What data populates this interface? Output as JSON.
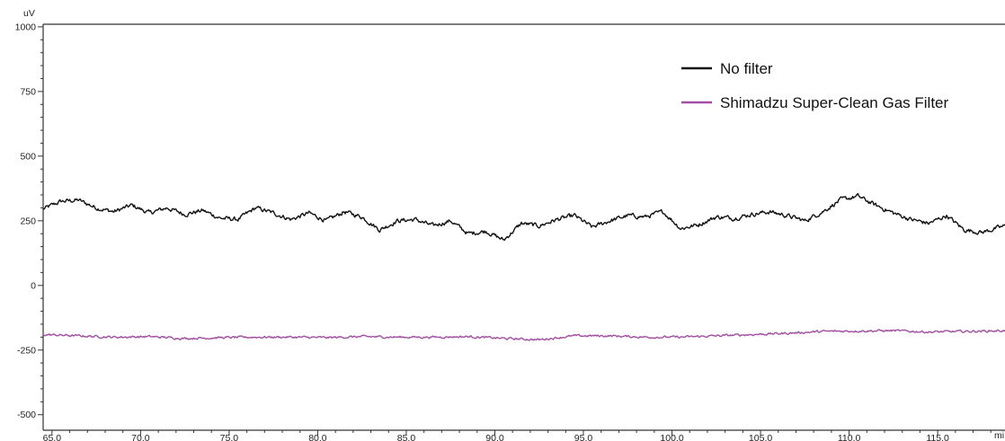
{
  "chart_data": {
    "type": "line",
    "title": "",
    "xlabel": "",
    "ylabel": "",
    "y_unit": "uV",
    "x_unit": "mi",
    "xlim": [
      64.5,
      118.8
    ],
    "ylim": [
      -560,
      1010
    ],
    "x_ticks": [
      "65.0",
      "70.0",
      "75.0",
      "80.0",
      "85.0",
      "90.0",
      "95.0",
      "100.0",
      "105.0",
      "110.0",
      "115.0"
    ],
    "y_ticks": [
      "1000",
      "750",
      "500",
      "250",
      "0",
      "-250",
      "-500"
    ],
    "grid": false,
    "legend": "top-right",
    "series": [
      {
        "name": "No filter",
        "color": "#111111",
        "x": [
          64.5,
          65.5,
          66.5,
          67.5,
          68.5,
          69.5,
          70.5,
          71.5,
          72.5,
          73.5,
          74.5,
          75.5,
          76.5,
          77.5,
          78.5,
          79.5,
          80.5,
          81.5,
          82.5,
          83.5,
          84.5,
          85.5,
          86.5,
          87.5,
          88.5,
          89.5,
          90.5,
          91.5,
          92.5,
          93.5,
          94.5,
          95.5,
          96.5,
          97.5,
          98.5,
          99.5,
          100.5,
          101.5,
          102.5,
          103.5,
          104.5,
          105.5,
          106.5,
          107.5,
          108.5,
          109.5,
          110.5,
          111.5,
          112.5,
          113.5,
          114.5,
          115.5,
          116.5,
          117.5,
          118.8
        ],
        "y": [
          295,
          325,
          330,
          300,
          285,
          310,
          280,
          300,
          275,
          290,
          260,
          255,
          300,
          280,
          255,
          280,
          250,
          285,
          265,
          215,
          250,
          255,
          230,
          250,
          200,
          210,
          175,
          240,
          230,
          255,
          270,
          225,
          250,
          270,
          265,
          285,
          220,
          235,
          265,
          260,
          275,
          285,
          270,
          250,
          285,
          330,
          345,
          310,
          280,
          255,
          240,
          270,
          215,
          205,
          230
        ]
      },
      {
        "name": "Shimadzu Super-Clean Gas Filter",
        "color": "#a24fa3",
        "x": [
          64.5,
          66.5,
          68.5,
          70.5,
          72.5,
          74.5,
          76.5,
          78.5,
          80.5,
          82.5,
          84.5,
          86.5,
          88.5,
          90.5,
          92.5,
          94.5,
          96.5,
          98.5,
          100.5,
          102.5,
          104.5,
          106.5,
          108.5,
          110.5,
          112.5,
          114.5,
          116.5,
          118.8
        ],
        "y": [
          -190,
          -195,
          -200,
          -198,
          -205,
          -202,
          -200,
          -200,
          -202,
          -198,
          -200,
          -200,
          -198,
          -205,
          -210,
          -195,
          -195,
          -200,
          -200,
          -195,
          -190,
          -185,
          -178,
          -176,
          -175,
          -180,
          -178,
          -175
        ]
      }
    ]
  }
}
